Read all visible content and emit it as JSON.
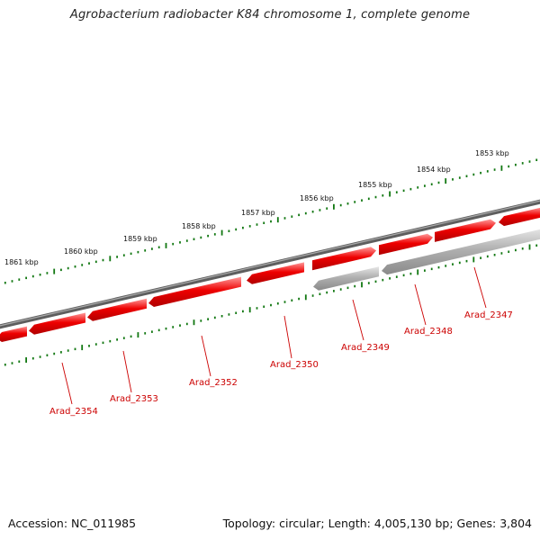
{
  "title": "Agrobacterium radiobacter K84 chromosome 1, complete genome",
  "accession": "Accession: NC_011985",
  "summary": "Topology: circular; Length: 4,005,130 bp; Genes: 3,804",
  "scale_labels": [
    "1853 kbp",
    "1854 kbp",
    "1855 kbp",
    "1856 kbp",
    "1857 kbp",
    "1858 kbp",
    "1859 kbp",
    "1860 kbp",
    "1861 kbp"
  ],
  "gene_labels": [
    "Arad_2347",
    "Arad_2348",
    "Arad_2349",
    "Arad_2350",
    "Arad_2352",
    "Arad_2353",
    "Arad_2354"
  ],
  "colors": {
    "forward_gene": "#ee0000",
    "reverse_gene": "#aaaaaa",
    "backbone": "#777777",
    "scale_ticks": "#117711",
    "gene_label": "#cc0000"
  }
}
